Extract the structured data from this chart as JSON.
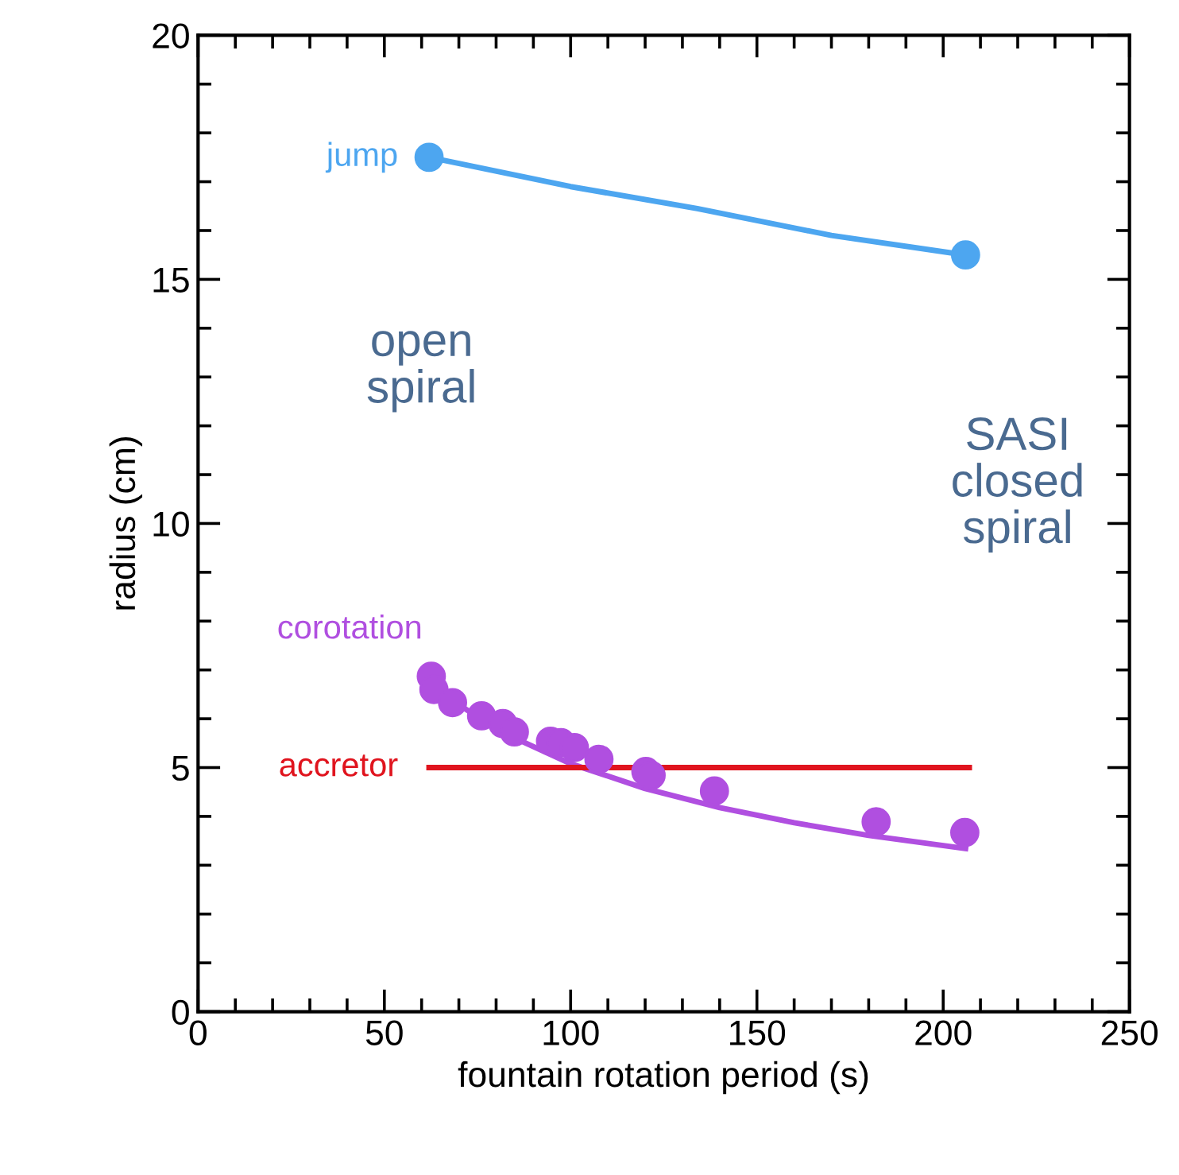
{
  "chart_data": {
    "type": "scatter",
    "xlabel": "fountain rotation period (s)",
    "ylabel": "radius (cm)",
    "xlim": [
      0,
      250
    ],
    "xticks": [
      0,
      50,
      100,
      150,
      200,
      250
    ],
    "ylim": [
      0,
      20
    ],
    "yticks": [
      0,
      5,
      10,
      15,
      20
    ],
    "grid": false,
    "legend": false,
    "series": [
      {
        "name": "jump",
        "type": "line",
        "color": "#4da6f0",
        "marker": "none",
        "x": [
          62,
          100,
          134,
          170,
          206
        ],
        "values": [
          17.5,
          16.9,
          16.45,
          15.9,
          15.5
        ]
      },
      {
        "color": "#4da6f0",
        "marker": "circle",
        "x": [
          62,
          206
        ],
        "values": [
          17.5,
          15.5
        ]
      },
      {
        "name": "corotation",
        "color": "#b04fe0",
        "marker": "circle",
        "x": [
          62.6,
          63.3,
          68.3,
          76.1,
          81.8,
          84.9,
          94.6,
          97.4,
          101,
          107.6,
          120.2,
          121.6,
          138.6,
          182,
          205.8
        ],
        "values": [
          6.87,
          6.6,
          6.33,
          6.06,
          5.9,
          5.73,
          5.54,
          5.51,
          5.41,
          5.17,
          4.92,
          4.84,
          4.52,
          3.89,
          3.67
        ]
      },
      {
        "type": "line",
        "color": "#b04fe0",
        "marker": "none",
        "x": [
          62,
          80,
          100,
          120,
          140,
          160,
          180,
          206
        ],
        "values": [
          6.7,
          5.78,
          5.08,
          4.57,
          4.18,
          3.87,
          3.61,
          3.34
        ]
      },
      {
        "name": "accretor",
        "type": "line",
        "color": "#e0141e",
        "marker": "none",
        "x": [
          62,
          207
        ],
        "values": [
          5,
          5
        ]
      }
    ],
    "annotations": [
      "open spiral",
      "SASI closed spiral"
    ]
  }
}
